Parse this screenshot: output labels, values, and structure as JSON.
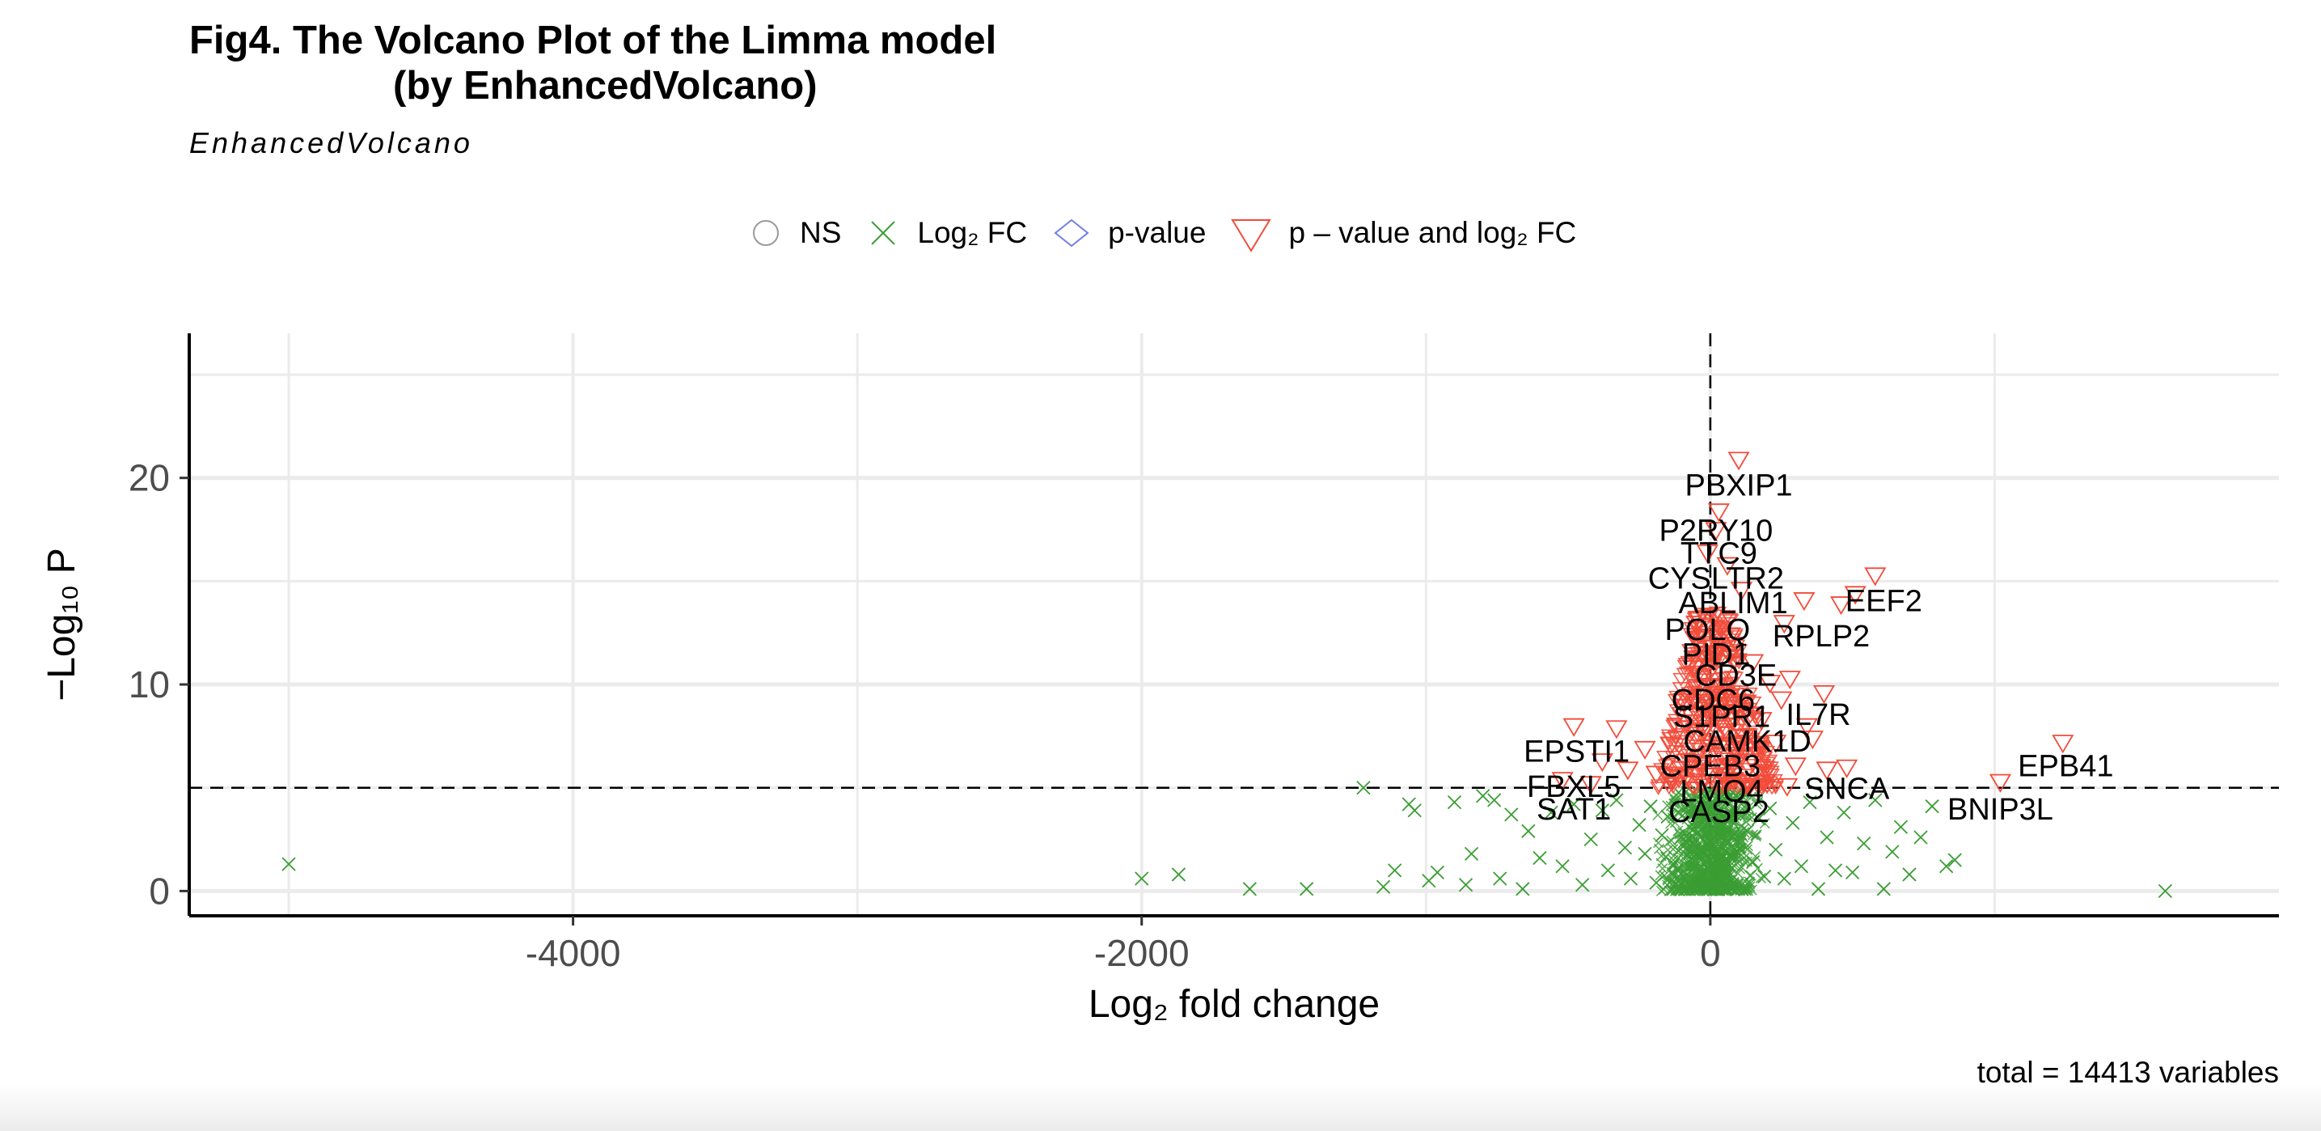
{
  "title": {
    "line1": "Fig4. The Volcano Plot of the Limma model",
    "line2": "(by EnhancedVolcano)"
  },
  "subtitle": "EnhancedVolcano",
  "legend": {
    "items": [
      {
        "label": "NS",
        "shape": "circle",
        "color": "#9a9a9a"
      },
      {
        "label": "Log₂ FC",
        "shape": "cross",
        "color": "#3b9e34"
      },
      {
        "label": "p-value",
        "shape": "diamond",
        "color": "#6f7fe8"
      },
      {
        "label": "p – value and log₂ FC",
        "shape": "triangle-down",
        "color": "#f24b3a"
      }
    ]
  },
  "caption": "total = 14413 variables",
  "colors": {
    "ns": "#9a9a9a",
    "log2fc": "#3b9e34",
    "pvalue": "#6f7fe8",
    "both": "#f24b3a",
    "grid": "#ebebeb"
  },
  "chart_data": {
    "type": "scatter",
    "xlabel": "Log₂ fold change",
    "ylabel": "−Log₁₀ P",
    "xlim": [
      -5350,
      2000
    ],
    "ylim": [
      -1.2,
      27
    ],
    "xticks": [
      -4000,
      -2000,
      0
    ],
    "yticks": [
      0,
      10,
      20
    ],
    "grid": true,
    "legend_position": "top",
    "p_cutoff_line": 5,
    "fc_cutoff_line": 0,
    "series": [
      {
        "name": "Log₂ FC",
        "marker": "cross",
        "points": [
          [
            -5000,
            1.3
          ],
          [
            -2000,
            0.6
          ],
          [
            -1870,
            0.8
          ],
          [
            -1620,
            0.1
          ],
          [
            -1420,
            0.1
          ],
          [
            -1220,
            5.0
          ],
          [
            -1150,
            0.2
          ],
          [
            -1110,
            1.0
          ],
          [
            -1060,
            4.2
          ],
          [
            -1040,
            3.9
          ],
          [
            -990,
            0.5
          ],
          [
            -960,
            0.9
          ],
          [
            -900,
            4.3
          ],
          [
            -860,
            0.3
          ],
          [
            -840,
            1.8
          ],
          [
            -800,
            4.6
          ],
          [
            -760,
            4.4
          ],
          [
            -740,
            0.6
          ],
          [
            -700,
            3.7
          ],
          [
            -660,
            0.1
          ],
          [
            -640,
            2.9
          ],
          [
            -600,
            1.6
          ],
          [
            -560,
            3.8
          ],
          [
            -520,
            1.2
          ],
          [
            -480,
            4.2
          ],
          [
            -450,
            0.3
          ],
          [
            -420,
            2.5
          ],
          [
            -380,
            3.9
          ],
          [
            -360,
            1.0
          ],
          [
            -330,
            4.4
          ],
          [
            -300,
            2.1
          ],
          [
            -280,
            0.6
          ],
          [
            -250,
            3.2
          ],
          [
            -230,
            1.8
          ],
          [
            -210,
            4.1
          ],
          [
            -190,
            0.4
          ],
          [
            -170,
            2.7
          ],
          [
            -150,
            3.6
          ],
          [
            -130,
            1.3
          ],
          [
            -110,
            0.2
          ],
          [
            -90,
            2.4
          ],
          [
            -70,
            4.3
          ],
          [
            -50,
            1.0
          ],
          [
            -30,
            3.0
          ],
          [
            -10,
            0.5
          ],
          [
            10,
            2.2
          ],
          [
            30,
            3.9
          ],
          [
            50,
            0.8
          ],
          [
            70,
            1.7
          ],
          [
            90,
            4.6
          ],
          [
            110,
            0.3
          ],
          [
            130,
            2.9
          ],
          [
            150,
            1.4
          ],
          [
            170,
            3.5
          ],
          [
            190,
            0.7
          ],
          [
            210,
            4.0
          ],
          [
            230,
            2.0
          ],
          [
            260,
            0.6
          ],
          [
            290,
            3.3
          ],
          [
            320,
            1.2
          ],
          [
            350,
            4.3
          ],
          [
            380,
            0.1
          ],
          [
            410,
            2.6
          ],
          [
            440,
            1.0
          ],
          [
            470,
            3.8
          ],
          [
            500,
            0.9
          ],
          [
            540,
            2.3
          ],
          [
            580,
            4.4
          ],
          [
            610,
            0.1
          ],
          [
            640,
            1.9
          ],
          [
            670,
            3.1
          ],
          [
            700,
            0.8
          ],
          [
            740,
            2.6
          ],
          [
            780,
            4.1
          ],
          [
            830,
            1.2
          ],
          [
            860,
            1.5
          ],
          [
            1600,
            0.0
          ]
        ]
      },
      {
        "name": "p – value and log₂ FC",
        "marker": "triangle-down",
        "points": [
          [
            100,
            20.9
          ],
          [
            30,
            18.4
          ],
          [
            20,
            17.5
          ],
          [
            -10,
            16.4
          ],
          [
            60,
            15.8
          ],
          [
            580,
            15.3
          ],
          [
            510,
            14.4
          ],
          [
            460,
            13.9
          ],
          [
            330,
            14.1
          ],
          [
            110,
            14.6
          ],
          [
            260,
            13.0
          ],
          [
            -40,
            13.2
          ],
          [
            70,
            12.4
          ],
          [
            10,
            11.8
          ],
          [
            150,
            11.1
          ],
          [
            -60,
            10.8
          ],
          [
            280,
            10.3
          ],
          [
            210,
            10.1
          ],
          [
            400,
            9.6
          ],
          [
            250,
            9.3
          ],
          [
            90,
            8.9
          ],
          [
            -70,
            8.6
          ],
          [
            180,
            8.3
          ],
          [
            340,
            8.0
          ],
          [
            -20,
            7.8
          ],
          [
            -330,
            7.9
          ],
          [
            -480,
            8.0
          ],
          [
            120,
            7.5
          ],
          [
            230,
            7.2
          ],
          [
            360,
            7.4
          ],
          [
            -140,
            7.1
          ],
          [
            -230,
            6.9
          ],
          [
            40,
            6.6
          ],
          [
            150,
            6.3
          ],
          [
            300,
            6.1
          ],
          [
            -380,
            6.3
          ],
          [
            -290,
            5.9
          ],
          [
            -190,
            5.7
          ],
          [
            -110,
            5.5
          ],
          [
            80,
            5.4
          ],
          [
            190,
            5.3
          ],
          [
            410,
            5.9
          ],
          [
            480,
            6.0
          ],
          [
            1240,
            7.2
          ],
          [
            1020,
            5.3
          ],
          [
            -520,
            5.4
          ],
          [
            -420,
            5.2
          ],
          [
            -60,
            5.2
          ],
          [
            0,
            5.6
          ],
          [
            270,
            5.1
          ]
        ]
      }
    ],
    "labels": [
      {
        "text": "PBXIP1",
        "x": 100,
        "y": 19.7
      },
      {
        "text": "P2RY10",
        "x": 20,
        "y": 17.5
      },
      {
        "text": "TTC9",
        "x": 30,
        "y": 16.4
      },
      {
        "text": "CYSLTR2",
        "x": 20,
        "y": 15.2
      },
      {
        "text": "EEF2",
        "x": 610,
        "y": 14.1
      },
      {
        "text": "ABLIM1",
        "x": 80,
        "y": 14.0
      },
      {
        "text": "POLQ",
        "x": -10,
        "y": 12.7
      },
      {
        "text": "RPLP2",
        "x": 390,
        "y": 12.4
      },
      {
        "text": "PID1",
        "x": 20,
        "y": 11.5
      },
      {
        "text": "CD3E",
        "x": 90,
        "y": 10.5
      },
      {
        "text": "CDC6",
        "x": 10,
        "y": 9.3
      },
      {
        "text": "S1PR1",
        "x": 40,
        "y": 8.5
      },
      {
        "text": "IL7R",
        "x": 380,
        "y": 8.6
      },
      {
        "text": "CAMK1D",
        "x": 130,
        "y": 7.3
      },
      {
        "text": "EPSTI1",
        "x": -470,
        "y": 6.8
      },
      {
        "text": "EPB41",
        "x": 1250,
        "y": 6.1
      },
      {
        "text": "CPEB3",
        "x": 0,
        "y": 6.1
      },
      {
        "text": "FBXL5",
        "x": -480,
        "y": 5.1
      },
      {
        "text": "LMO4",
        "x": 40,
        "y": 4.9
      },
      {
        "text": "SNCA",
        "x": 480,
        "y": 5.0
      },
      {
        "text": "BNIP3L",
        "x": 1020,
        "y": 4.0
      },
      {
        "text": "SAT1",
        "x": -480,
        "y": 4.0
      },
      {
        "text": "CASP2",
        "x": 30,
        "y": 3.9
      }
    ]
  }
}
